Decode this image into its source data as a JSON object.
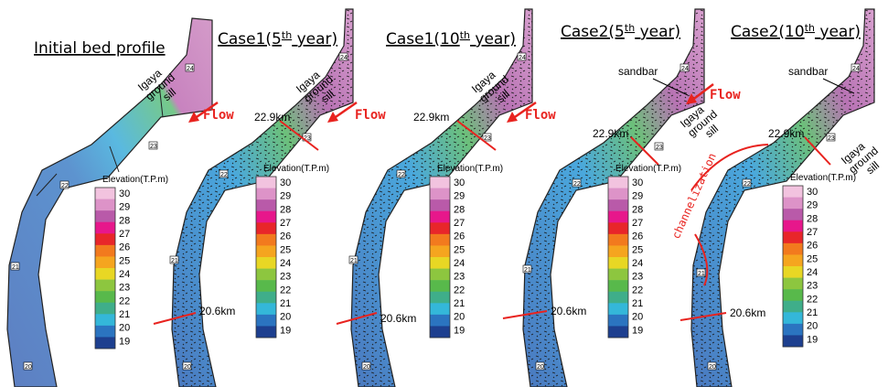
{
  "panels": [
    {
      "id": "initial",
      "title": "Initial bed profile",
      "sup": "",
      "title_end": ""
    },
    {
      "id": "case1-5",
      "title": "Case1(5",
      "sup": "th",
      "title_end": " year)"
    },
    {
      "id": "case1-10",
      "title": "Case1(10",
      "sup": "th",
      "title_end": " year)"
    },
    {
      "id": "case2-5",
      "title": "Case2(5",
      "sup": "th",
      "title_end": " year)"
    },
    {
      "id": "case2-10",
      "title": "Case2(10",
      "sup": "th",
      "title_end": " year)"
    }
  ],
  "labels": {
    "sill_line1": "Igaya",
    "sill_line2": "ground",
    "sill_line3": "sill",
    "flow": "Flow",
    "km_upper": "22.9km",
    "km_lower": "20.6km",
    "sandbar": "sandbar",
    "channelization": "channelization"
  },
  "km_markers": [
    "24",
    "23",
    "22",
    "21",
    "20"
  ],
  "legend": {
    "title": "Elevation(T.P.m)",
    "levels": [
      "30",
      "29",
      "28",
      "27",
      "26",
      "25",
      "24",
      "23",
      "22",
      "21",
      "20",
      "19"
    ],
    "colors": [
      "#f2c3df",
      "#dd93c8",
      "#b95aa9",
      "#e7178b",
      "#e8262a",
      "#f27a1e",
      "#f5a51f",
      "#e8d724",
      "#8dc63f",
      "#58b94b",
      "#3fae8a",
      "#34b7d9",
      "#2b74c0",
      "#1d3f8f"
    ]
  },
  "colors": {
    "initial_fill_lower": "#5d83c4",
    "initial_fill_mid": "#5ab5dc",
    "initial_fill_green": "#74c786",
    "initial_fill_pink": "#c781bd",
    "cross_section_line": "#e8231f"
  }
}
